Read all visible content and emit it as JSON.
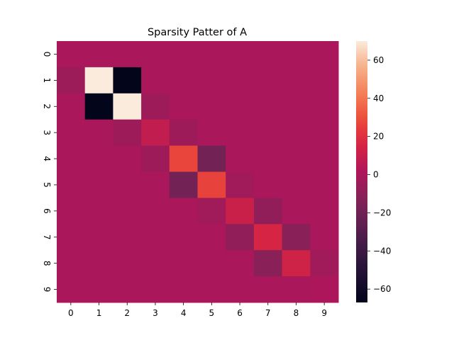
{
  "chart_data": {
    "type": "heatmap",
    "title": "Sparsity Patter of A",
    "xlabel": "",
    "ylabel": "",
    "x_tick_labels": [
      "0",
      "1",
      "2",
      "3",
      "4",
      "5",
      "6",
      "7",
      "8",
      "9"
    ],
    "y_tick_labels": [
      "0",
      "1",
      "2",
      "3",
      "4",
      "5",
      "6",
      "7",
      "8",
      "9"
    ],
    "colormap": "rocket",
    "vmin": -67,
    "vmax": 70,
    "colorbar_ticks": [
      60,
      40,
      20,
      0,
      -20,
      -40,
      -60
    ],
    "colorbar_tick_labels": [
      "60",
      "40",
      "20",
      "0",
      "−20",
      "−40",
      "−60"
    ],
    "values": [
      [
        0,
        0,
        0,
        0,
        0,
        0,
        0,
        0,
        0,
        0
      ],
      [
        -5,
        70,
        -67,
        0,
        0,
        0,
        0,
        0,
        0,
        0
      ],
      [
        0,
        -67,
        70,
        -4,
        0,
        0,
        0,
        0,
        0,
        0
      ],
      [
        0,
        0,
        -4,
        8,
        -4,
        0,
        0,
        0,
        0,
        0
      ],
      [
        0,
        0,
        0,
        -4,
        27,
        -19,
        0,
        0,
        0,
        0
      ],
      [
        0,
        0,
        0,
        0,
        -19,
        26,
        -3,
        0,
        0,
        0
      ],
      [
        0,
        0,
        0,
        0,
        0,
        -3,
        11,
        -8,
        0,
        0
      ],
      [
        0,
        0,
        0,
        0,
        0,
        0,
        -8,
        15,
        -11,
        0
      ],
      [
        0,
        0,
        0,
        0,
        0,
        0,
        0,
        -11,
        13,
        -3
      ],
      [
        0,
        0,
        0,
        0,
        0,
        0,
        0,
        0,
        0,
        1
      ]
    ]
  }
}
